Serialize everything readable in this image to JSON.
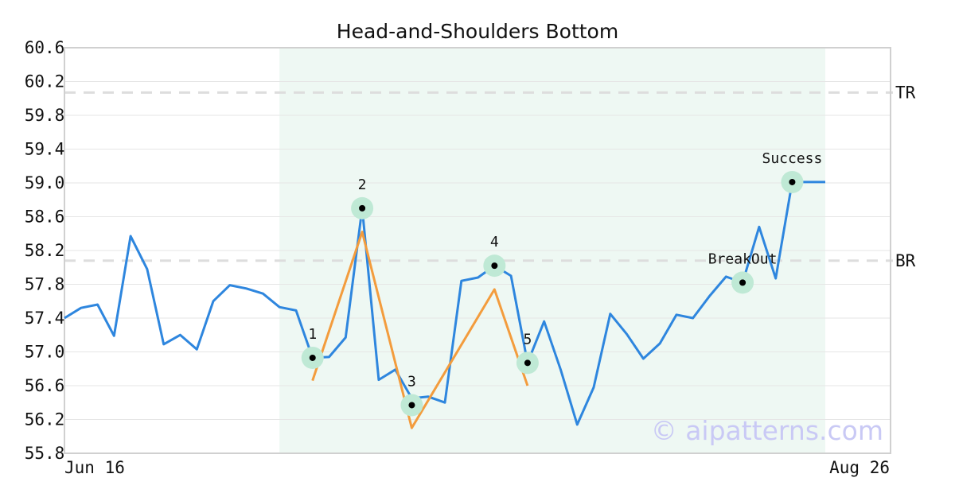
{
  "chart_data": {
    "type": "line",
    "title": "Head-and-Shoulders Bottom",
    "xlabel": "",
    "ylabel": "",
    "ylim": [
      55.8,
      60.6
    ],
    "yticks": [
      55.8,
      56.2,
      56.6,
      57.0,
      57.4,
      57.8,
      58.2,
      58.6,
      59.0,
      59.4,
      59.8,
      60.2,
      60.6
    ],
    "ytick_labels": [
      "55.8",
      "56.2",
      "56.6",
      "57.0",
      "57.4",
      "57.8",
      "58.2",
      "58.6",
      "59.0",
      "59.4",
      "59.8",
      "60.2",
      "60.6"
    ],
    "xticks": [
      {
        "index": 0,
        "label": "Jun 16"
      },
      {
        "index": 46,
        "label": "Aug 26"
      }
    ],
    "grid": true,
    "series": [
      {
        "color": "#2e86de",
        "values": [
          57.4,
          57.52,
          57.56,
          57.19,
          58.37,
          57.98,
          57.09,
          57.2,
          57.03,
          57.6,
          57.79,
          57.75,
          57.69,
          57.53,
          57.49,
          56.93,
          56.94,
          57.17,
          58.7,
          56.67,
          56.79,
          56.45,
          56.47,
          56.4,
          57.84,
          57.88,
          58.02,
          57.9,
          56.87,
          57.36,
          56.79,
          56.14,
          56.58,
          57.45,
          57.21,
          56.92,
          57.1,
          57.44,
          57.4,
          57.66,
          57.89,
          57.82,
          58.48,
          57.87,
          59.01,
          59.01,
          59.01
        ]
      },
      {
        "color": "#f39c3d",
        "points": [
          {
            "x": 15,
            "y": 56.66
          },
          {
            "x": 18,
            "y": 58.42
          },
          {
            "x": 21,
            "y": 56.1
          },
          {
            "x": 26,
            "y": 57.74
          },
          {
            "x": 28,
            "y": 56.6
          }
        ]
      }
    ],
    "highlight_range": {
      "from": 13,
      "to": 46,
      "color": "#eef8f3"
    },
    "levels": [
      {
        "label": "TR",
        "value": 60.07
      },
      {
        "label": "BR",
        "value": 58.08
      }
    ],
    "annotations": [
      {
        "label": "1",
        "x": 15,
        "y": 56.93,
        "text_pos": "above"
      },
      {
        "label": "2",
        "x": 18,
        "y": 58.7,
        "text_pos": "above"
      },
      {
        "label": "3",
        "x": 21,
        "y": 56.37,
        "text_pos": "above"
      },
      {
        "label": "4",
        "x": 26,
        "y": 58.02,
        "text_pos": "above"
      },
      {
        "label": "5",
        "x": 28,
        "y": 56.87,
        "text_pos": "above"
      },
      {
        "label": "BreakOut",
        "x": 41,
        "y": 57.82,
        "text_pos": "above"
      },
      {
        "label": "Success",
        "x": 44,
        "y": 59.01,
        "text_pos": "above"
      }
    ],
    "watermark": "© aipatterns.com"
  },
  "colors": {
    "line": "#2e86de",
    "pattern": "#f39c3d",
    "marker_halo": "#bfe9d5",
    "marker_dot": "#000000",
    "level_line": "#dddddd",
    "grid": "#e6e6e6",
    "axis": "#d0d0d0",
    "highlight": "#eef8f3",
    "watermark": "#c9c9f5"
  }
}
